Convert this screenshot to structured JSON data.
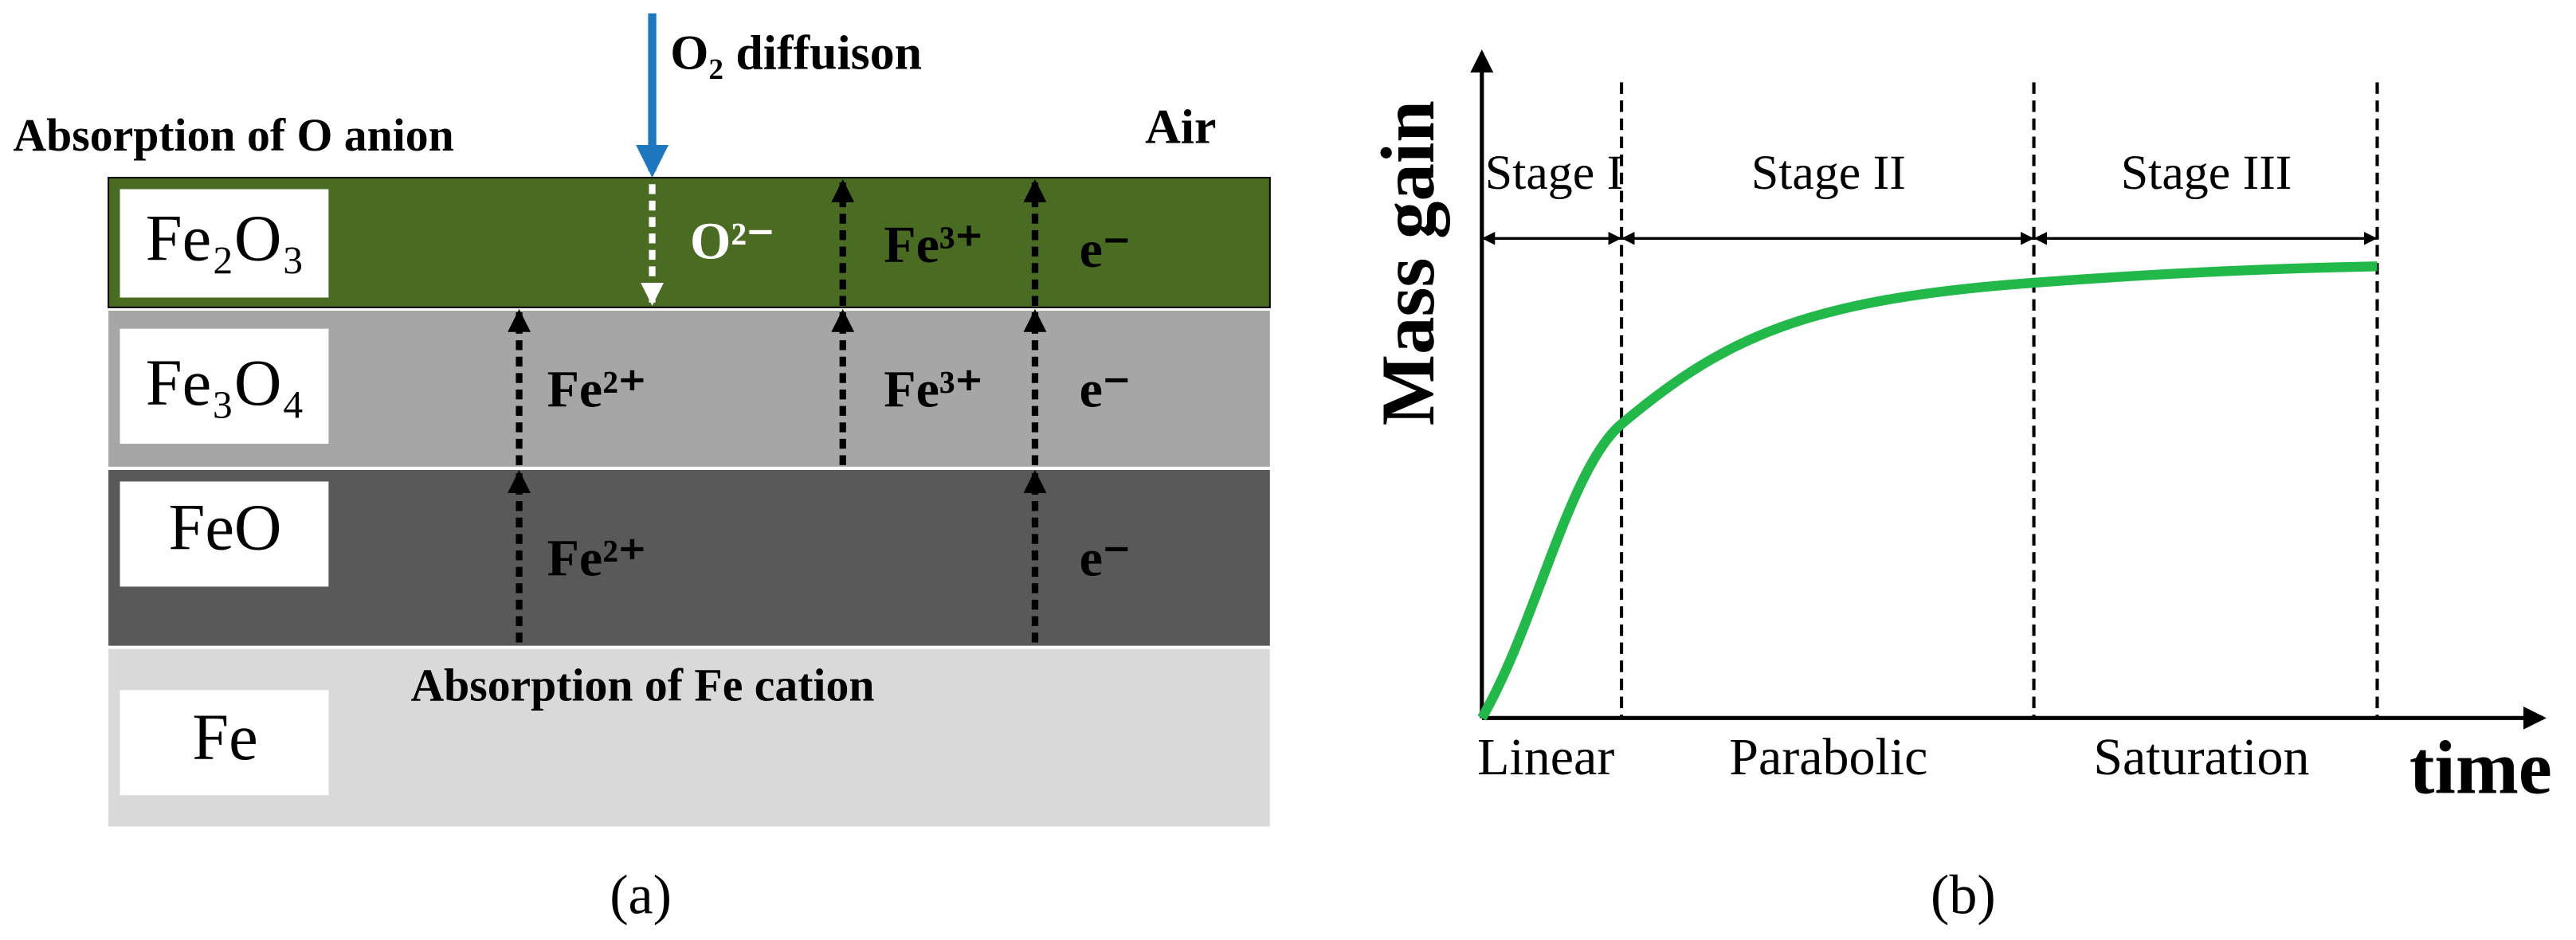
{
  "panel_a": {
    "caption": "(a)",
    "layers": [
      "Fe₂O₃",
      "Fe₃O₄",
      "FeO",
      "Fe"
    ],
    "o2_label": "O₂ diffuison",
    "o_anion_label": "Absorption of O anion",
    "air_label": "Air",
    "fe_cation_label": "Absorption of Fe cation",
    "ions": [
      "O²⁻",
      "Fe³⁺",
      "e⁻",
      "Fe²⁺",
      "Fe³⁺",
      "e⁻",
      "Fe²⁺",
      "e⁻"
    ]
  },
  "panel_b": {
    "caption": "(b)",
    "y_label": "Mass gain",
    "x_label": "time",
    "stages": [
      "Stage I",
      "Stage II",
      "Stage III"
    ],
    "regimes": [
      "Linear",
      "Parabolic",
      "Saturation"
    ]
  }
}
